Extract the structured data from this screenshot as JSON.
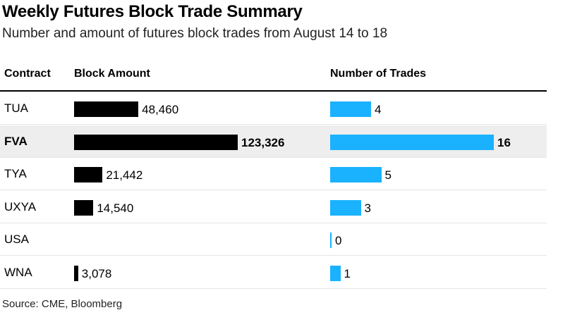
{
  "header": {
    "title": "Weekly Futures Block Trade Summary",
    "subtitle": "Number and amount of futures block trades from August 14 to 18"
  },
  "columns": {
    "contract": "Contract",
    "amount": "Block Amount",
    "trades": "Number of Trades"
  },
  "source": "Source: CME, Bloomberg",
  "colors": {
    "amount_bar": "#000000",
    "trades_bar": "#1ab2ff",
    "highlight_row": "#eeeeee"
  },
  "chart_data": {
    "type": "bar",
    "title": "Weekly Futures Block Trade Summary",
    "subtitle": "Number and amount of futures block trades from August 14 to 18",
    "categories": [
      "TUA",
      "FVA",
      "TYA",
      "UXYA",
      "USA",
      "WNA"
    ],
    "highlight": "FVA",
    "series": [
      {
        "name": "Block Amount",
        "values": [
          48460,
          123326,
          21442,
          14540,
          null,
          3078
        ],
        "labels": [
          "48,460",
          "123,326",
          "21,442",
          "14,540",
          "",
          "3,078"
        ]
      },
      {
        "name": "Number of Trades",
        "values": [
          4,
          16,
          5,
          3,
          0,
          1
        ],
        "labels": [
          "4",
          "16",
          "5",
          "3",
          "0",
          "1"
        ]
      }
    ]
  }
}
